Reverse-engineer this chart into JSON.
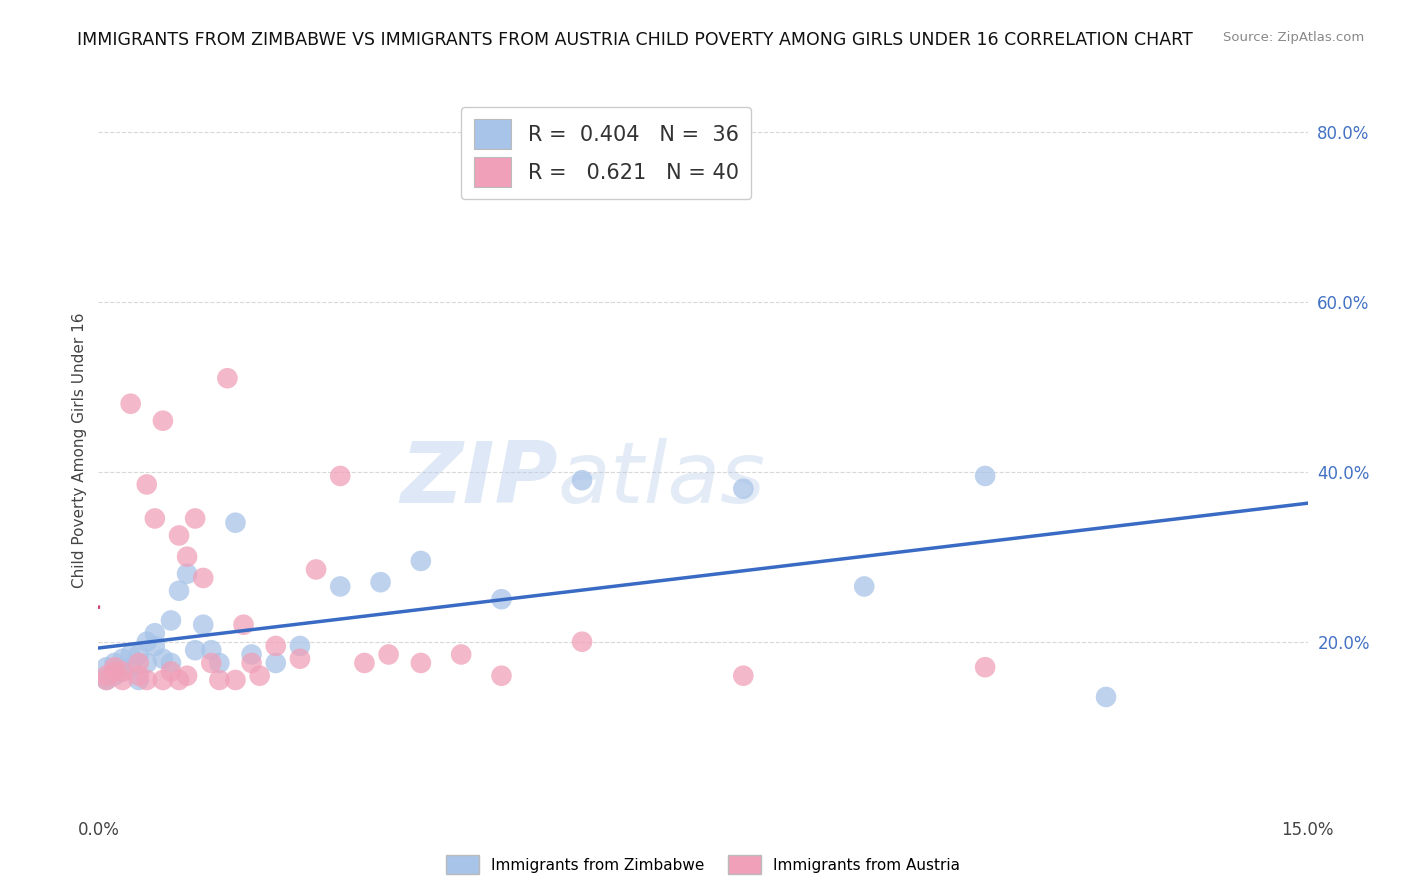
{
  "title": "IMMIGRANTS FROM ZIMBABWE VS IMMIGRANTS FROM AUSTRIA CHILD POVERTY AMONG GIRLS UNDER 16 CORRELATION CHART",
  "source": "Source: ZipAtlas.com",
  "ylabel": "Child Poverty Among Girls Under 16",
  "xlabel": "",
  "xlim": [
    0,
    0.15
  ],
  "ylim": [
    0,
    0.85
  ],
  "y_ticks_right": [
    0.2,
    0.4,
    0.6,
    0.8
  ],
  "y_tick_labels_right": [
    "20.0%",
    "40.0%",
    "60.0%",
    "80.0%"
  ],
  "zimbabwe_color": "#a8c4e8",
  "austria_color": "#f0a0b8",
  "zimbabwe_line_color": "#3a6bc4",
  "austria_line_color": "#d84070",
  "R_zimbabwe": 0.404,
  "N_zimbabwe": 36,
  "R_austria": 0.621,
  "N_austria": 40,
  "watermark_zip": "ZIP",
  "watermark_atlas": "atlas",
  "background_color": "#ffffff",
  "grid_color": "#d8d8d8",
  "zimbabwe_scatter_x": [
    0.001,
    0.001,
    0.002,
    0.002,
    0.003,
    0.003,
    0.004,
    0.004,
    0.005,
    0.005,
    0.006,
    0.006,
    0.007,
    0.007,
    0.008,
    0.009,
    0.009,
    0.01,
    0.011,
    0.012,
    0.013,
    0.014,
    0.015,
    0.017,
    0.019,
    0.022,
    0.025,
    0.03,
    0.035,
    0.04,
    0.05,
    0.06,
    0.08,
    0.095,
    0.11,
    0.125
  ],
  "zimbabwe_scatter_y": [
    0.155,
    0.17,
    0.16,
    0.175,
    0.165,
    0.18,
    0.17,
    0.185,
    0.155,
    0.185,
    0.2,
    0.175,
    0.195,
    0.21,
    0.18,
    0.175,
    0.225,
    0.26,
    0.28,
    0.19,
    0.22,
    0.19,
    0.175,
    0.34,
    0.185,
    0.175,
    0.195,
    0.265,
    0.27,
    0.295,
    0.25,
    0.39,
    0.38,
    0.265,
    0.395,
    0.135
  ],
  "austria_scatter_x": [
    0.001,
    0.001,
    0.002,
    0.002,
    0.003,
    0.003,
    0.004,
    0.005,
    0.005,
    0.006,
    0.006,
    0.007,
    0.008,
    0.008,
    0.009,
    0.01,
    0.01,
    0.011,
    0.011,
    0.012,
    0.013,
    0.014,
    0.015,
    0.016,
    0.017,
    0.018,
    0.019,
    0.02,
    0.022,
    0.025,
    0.027,
    0.03,
    0.033,
    0.036,
    0.04,
    0.045,
    0.05,
    0.06,
    0.08,
    0.11
  ],
  "austria_scatter_y": [
    0.155,
    0.16,
    0.165,
    0.17,
    0.155,
    0.165,
    0.48,
    0.16,
    0.175,
    0.155,
    0.385,
    0.345,
    0.155,
    0.46,
    0.165,
    0.155,
    0.325,
    0.16,
    0.3,
    0.345,
    0.275,
    0.175,
    0.155,
    0.51,
    0.155,
    0.22,
    0.175,
    0.16,
    0.195,
    0.18,
    0.285,
    0.395,
    0.175,
    0.185,
    0.175,
    0.185,
    0.16,
    0.2,
    0.16,
    0.17
  ],
  "title_fontsize": 12.5,
  "label_fontsize": 11,
  "legend_fontsize": 15,
  "tick_fontsize": 12
}
